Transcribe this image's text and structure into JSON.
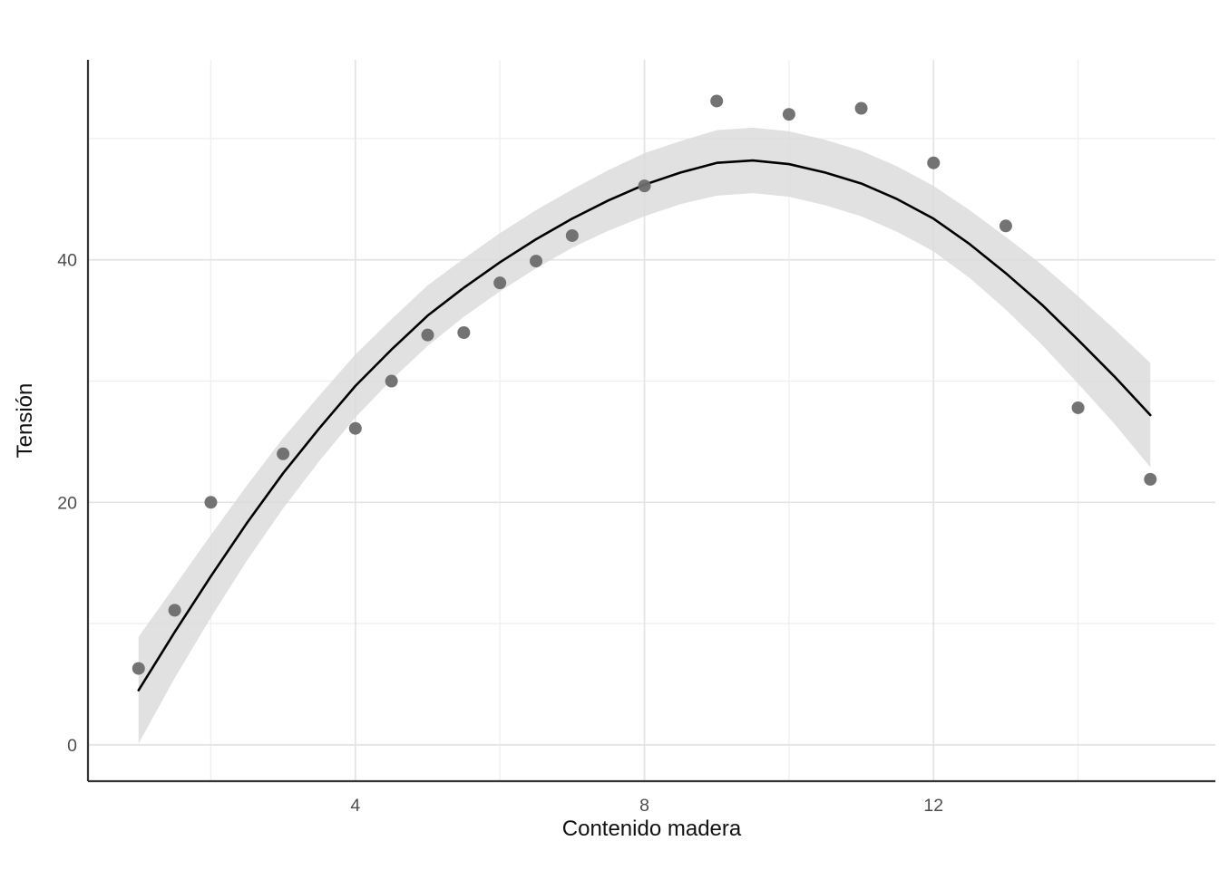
{
  "chart_data": {
    "type": "scatter",
    "title": "",
    "xlabel": "Contenido madera",
    "ylabel": "Tensión",
    "xlim": [
      0.3,
      15.9
    ],
    "ylim": [
      -3,
      56.5
    ],
    "x_ticks": [
      4,
      8,
      12
    ],
    "x_minor_ticks": [
      2,
      6,
      10,
      14
    ],
    "y_ticks": [
      0,
      20,
      40
    ],
    "y_minor_ticks": [
      10,
      30,
      50
    ],
    "grid": "on",
    "legend": "none",
    "points": {
      "x": [
        1,
        1.5,
        2,
        3,
        4,
        4.5,
        5,
        5.5,
        6,
        6.5,
        7,
        8,
        9,
        10,
        11,
        12,
        13,
        14,
        15
      ],
      "y": [
        6.3,
        11.1,
        20.0,
        24.0,
        26.1,
        30.0,
        33.8,
        34.0,
        38.1,
        39.9,
        42.0,
        46.1,
        53.1,
        52.0,
        52.5,
        48.0,
        42.8,
        27.8,
        21.9
      ]
    },
    "smooth": {
      "x": [
        1,
        1.5,
        2,
        2.5,
        3,
        3.5,
        4,
        4.5,
        5,
        5.5,
        6,
        6.5,
        7,
        7.5,
        8,
        8.5,
        9,
        9.5,
        10,
        10.5,
        11,
        11.5,
        12,
        12.5,
        13,
        13.5,
        14,
        14.5,
        15
      ],
      "fit": [
        4.5,
        9.3,
        13.9,
        18.3,
        22.4,
        26.1,
        29.6,
        32.6,
        35.4,
        37.7,
        39.8,
        41.7,
        43.4,
        44.9,
        46.2,
        47.2,
        48.0,
        48.2,
        47.9,
        47.2,
        46.3,
        45.0,
        43.4,
        41.3,
        38.9,
        36.3,
        33.4,
        30.4,
        27.2
      ],
      "lower": [
        0.1,
        5.5,
        10.5,
        15.2,
        19.5,
        23.4,
        27.0,
        30.1,
        32.9,
        35.3,
        37.4,
        39.3,
        41.0,
        42.4,
        43.6,
        44.6,
        45.3,
        45.5,
        45.2,
        44.5,
        43.6,
        42.3,
        40.7,
        38.5,
        35.9,
        33.0,
        29.8,
        26.5,
        22.9
      ],
      "upper": [
        8.9,
        13.1,
        17.3,
        21.4,
        25.3,
        28.8,
        32.2,
        35.1,
        37.9,
        40.1,
        42.2,
        44.1,
        45.8,
        47.4,
        48.8,
        49.8,
        50.7,
        50.9,
        50.6,
        49.9,
        49.0,
        47.7,
        46.1,
        44.1,
        41.9,
        39.6,
        37.0,
        34.3,
        31.5
      ]
    },
    "colors": {
      "point": "#6b6b6b",
      "line": "#000000",
      "ribbon": "#d9d9d9",
      "grid_major": "#e4e4e4",
      "grid_minor": "#efefef",
      "axis": "#333333",
      "tick_label": "#4d4d4d",
      "background": "#ffffff"
    }
  }
}
